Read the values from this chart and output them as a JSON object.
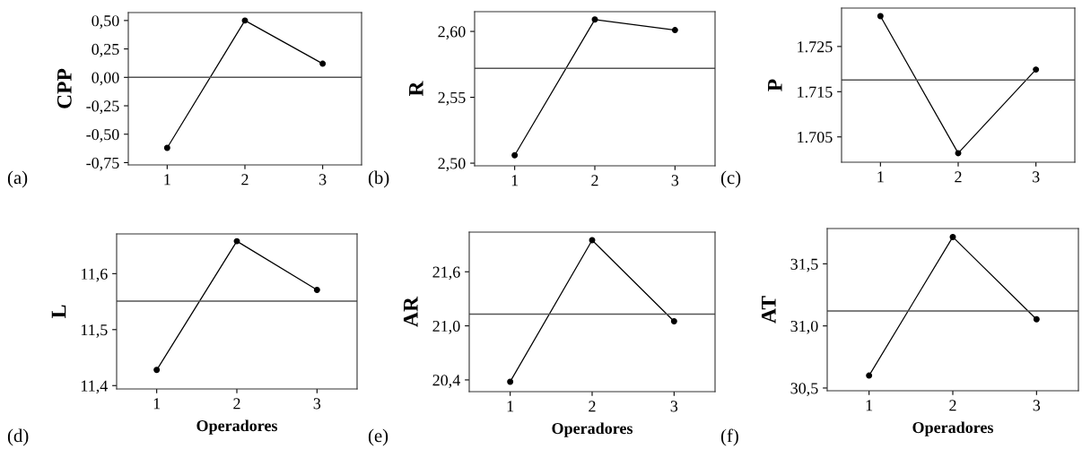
{
  "chart_data": [
    {
      "type": "line",
      "ylabel": "CPP",
      "annotations": [
        "(a)"
      ],
      "x": [
        1,
        2,
        3
      ],
      "xlim": [
        0.5,
        3.5
      ],
      "xticks": [
        1,
        2,
        3
      ],
      "ylim": [
        -0.77,
        0.57
      ],
      "yticks": [
        {
          "value": -0.75,
          "label": "-0,75"
        },
        {
          "value": -0.5,
          "label": "-0,50"
        },
        {
          "value": -0.25,
          "label": "-0,25"
        },
        {
          "value": 0,
          "label": "0,00"
        },
        {
          "value": 0.25,
          "label": "0,25"
        },
        {
          "value": 0.5,
          "label": "0,50"
        }
      ],
      "marker": "circle",
      "grid": false,
      "series": [
        {
          "color": "#000000",
          "values": [
            -0.62,
            0.5,
            0.12
          ]
        }
      ],
      "ref_lines": [
        {
          "axis": "y",
          "value": 0,
          "color": "#555555"
        }
      ]
    },
    {
      "type": "line",
      "ylabel": "R",
      "annotations": [
        "(b)"
      ],
      "x": [
        1,
        2,
        3
      ],
      "xlim": [
        0.5,
        3.5
      ],
      "xticks": [
        1,
        2,
        3
      ],
      "ylim": [
        2.498,
        2.615
      ],
      "yticks": [
        {
          "value": 2.5,
          "label": "2,50"
        },
        {
          "value": 2.55,
          "label": "2,55"
        },
        {
          "value": 2.6,
          "label": "2,60"
        }
      ],
      "marker": "circle",
      "grid": false,
      "series": [
        {
          "color": "#000000",
          "values": [
            2.506,
            2.609,
            2.601
          ]
        }
      ],
      "ref_lines": [
        {
          "axis": "y",
          "value": 2.572,
          "color": "#555555"
        }
      ]
    },
    {
      "type": "line",
      "ylabel": "P",
      "annotations": [
        "(c)"
      ],
      "x": [
        1,
        2,
        3
      ],
      "xlim": [
        0.5,
        3.5
      ],
      "xticks": [
        1,
        2,
        3
      ],
      "ylim": [
        1699.4,
        1733.5
      ],
      "yticks": [
        {
          "value": 1705,
          "label": "1.705"
        },
        {
          "value": 1715,
          "label": "1.715"
        },
        {
          "value": 1725,
          "label": "1.725"
        }
      ],
      "marker": "circle",
      "grid": false,
      "series": [
        {
          "color": "#000000",
          "values": [
            1731.7,
            1701.4,
            1719.9
          ]
        }
      ],
      "ref_lines": [
        {
          "axis": "y",
          "value": 1717.6,
          "color": "#555555"
        }
      ]
    },
    {
      "type": "line",
      "ylabel": "L",
      "xlabel": "Operadores",
      "annotations": [
        "(d)"
      ],
      "x": [
        1,
        2,
        3
      ],
      "xlim": [
        0.5,
        3.5
      ],
      "xticks": [
        1,
        2,
        3
      ],
      "ylim": [
        11.394,
        11.671
      ],
      "yticks": [
        {
          "value": 11.4,
          "label": "11,4"
        },
        {
          "value": 11.5,
          "label": "11,5"
        },
        {
          "value": 11.6,
          "label": "11,6"
        }
      ],
      "marker": "circle",
      "grid": false,
      "series": [
        {
          "color": "#000000",
          "values": [
            11.428,
            11.658,
            11.571
          ]
        }
      ],
      "ref_lines": [
        {
          "axis": "y",
          "value": 11.551,
          "color": "#555555"
        }
      ]
    },
    {
      "type": "line",
      "ylabel": "AR",
      "xlabel": "Operadores",
      "annotations": [
        "(e)"
      ],
      "x": [
        1,
        2,
        3
      ],
      "xlim": [
        0.5,
        3.5
      ],
      "xticks": [
        1,
        2,
        3
      ],
      "ylim": [
        20.27,
        22.04
      ],
      "yticks": [
        {
          "value": 20.4,
          "label": "20,4"
        },
        {
          "value": 21.0,
          "label": "21,0"
        },
        {
          "value": 21.6,
          "label": "21,6"
        }
      ],
      "marker": "circle",
      "grid": false,
      "series": [
        {
          "color": "#000000",
          "values": [
            20.38,
            21.95,
            21.05
          ]
        }
      ],
      "ref_lines": [
        {
          "axis": "y",
          "value": 21.13,
          "color": "#555555"
        }
      ]
    },
    {
      "type": "line",
      "ylabel": "AT",
      "xlabel": "Operadores",
      "annotations": [
        "(f)"
      ],
      "x": [
        1,
        2,
        3
      ],
      "xlim": [
        0.5,
        3.5
      ],
      "xticks": [
        1,
        2,
        3
      ],
      "ylim": [
        30.478,
        31.784
      ],
      "yticks": [
        {
          "value": 30.5,
          "label": "30,5"
        },
        {
          "value": 31.0,
          "label": "31,0"
        },
        {
          "value": 31.5,
          "label": "31,5"
        }
      ],
      "marker": "circle",
      "grid": false,
      "series": [
        {
          "color": "#000000",
          "values": [
            30.6,
            31.716,
            31.053
          ]
        }
      ],
      "ref_lines": [
        {
          "axis": "y",
          "value": 31.12,
          "color": "#555555"
        }
      ]
    }
  ]
}
